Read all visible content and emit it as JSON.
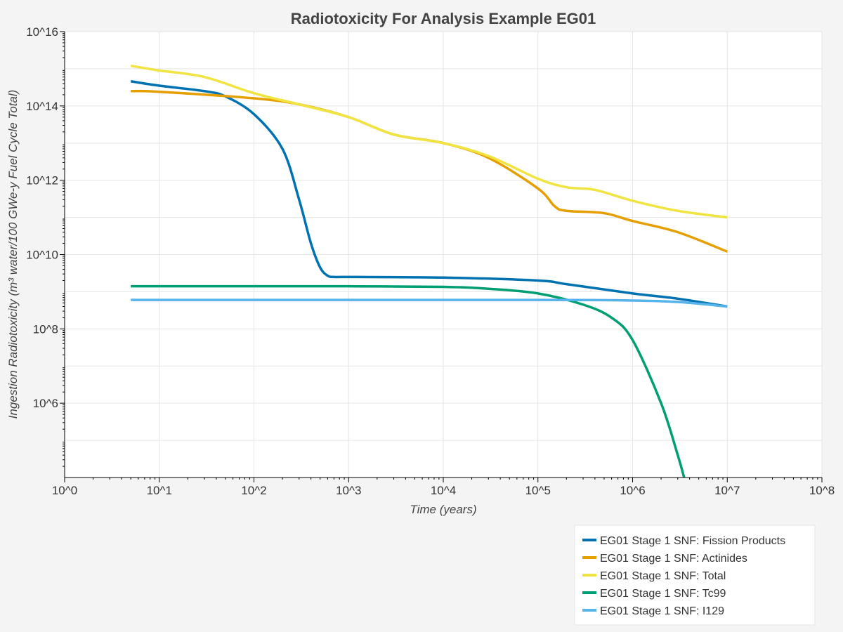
{
  "chart_data": {
    "type": "line",
    "title": "Radiotoxicity For Analysis Example EG01",
    "xlabel": "Time (years)",
    "ylabel": "Ingestion Radiotoxicity (m³ water/100 GWe-y Fuel Cycle Total)",
    "x_scale": "log",
    "y_scale": "log",
    "xlim": [
      1,
      100000000
    ],
    "ylim": [
      10000,
      10000000000000000
    ],
    "grid": true,
    "legend_position": "bottom-right",
    "x_ticks": [
      {
        "value": 1,
        "label": "10^0"
      },
      {
        "value": 10,
        "label": "10^1"
      },
      {
        "value": 100,
        "label": "10^2"
      },
      {
        "value": 1000,
        "label": "10^3"
      },
      {
        "value": 10000,
        "label": "10^4"
      },
      {
        "value": 100000,
        "label": "10^5"
      },
      {
        "value": 1000000,
        "label": "10^6"
      },
      {
        "value": 10000000,
        "label": "10^7"
      },
      {
        "value": 100000000,
        "label": "10^8"
      }
    ],
    "y_ticks": [
      {
        "value": 1000000,
        "label": "10^6"
      },
      {
        "value": 100000000,
        "label": "10^8"
      },
      {
        "value": 10000000000,
        "label": "10^10"
      },
      {
        "value": 1000000000000,
        "label": "10^12"
      },
      {
        "value": 100000000000000,
        "label": "10^14"
      },
      {
        "value": 10000000000000000,
        "label": "10^16"
      }
    ],
    "series": [
      {
        "name": "EG01 Stage 1 SNF: Fission Products",
        "color": "#0072b2",
        "points": [
          [
            5,
            460000000000000.0
          ],
          [
            10,
            350000000000000.0
          ],
          [
            30,
            250000000000000.0
          ],
          [
            50,
            180000000000000.0
          ],
          [
            100,
            60000000000000.0
          ],
          [
            200,
            7000000000000.0
          ],
          [
            300,
            300000000000.0
          ],
          [
            400,
            20000000000.0
          ],
          [
            500,
            4500000000.0
          ],
          [
            600,
            2700000000.0
          ],
          [
            700,
            2500000000.0
          ],
          [
            1000,
            2500000000.0
          ],
          [
            10000,
            2400000000.0
          ],
          [
            100000,
            2000000000.0
          ],
          [
            200000,
            1600000000.0
          ],
          [
            1000000,
            900000000.0
          ],
          [
            3000000,
            650000000.0
          ],
          [
            10000000,
            400000000.0
          ]
        ]
      },
      {
        "name": "EG01 Stage 1 SNF: Actinides",
        "color": "#e69f00",
        "points": [
          [
            5,
            250000000000000.0
          ],
          [
            10,
            240000000000000.0
          ],
          [
            100,
            160000000000000.0
          ],
          [
            300,
            110000000000000.0
          ],
          [
            1000,
            50000000000000.0
          ],
          [
            3000,
            17000000000000.0
          ],
          [
            10000,
            10000000000000.0
          ],
          [
            30000,
            4000000000000.0
          ],
          [
            100000,
            600000000000.0
          ],
          [
            150000,
            200000000000.0
          ],
          [
            200000,
            150000000000.0
          ],
          [
            500000,
            130000000000.0
          ],
          [
            1000000,
            80000000000.0
          ],
          [
            3000000,
            40000000000.0
          ],
          [
            10000000,
            12000000000.0
          ]
        ]
      },
      {
        "name": "EG01 Stage 1 SNF: Total",
        "color": "#f0e442",
        "points": [
          [
            5,
            1200000000000000.0
          ],
          [
            10,
            900000000000000.0
          ],
          [
            30,
            600000000000000.0
          ],
          [
            100,
            220000000000000.0
          ],
          [
            300,
            110000000000000.0
          ],
          [
            1000,
            50000000000000.0
          ],
          [
            3000,
            17000000000000.0
          ],
          [
            10000,
            10000000000000.0
          ],
          [
            30000,
            4500000000000.0
          ],
          [
            100000,
            1100000000000.0
          ],
          [
            200000,
            650000000000.0
          ],
          [
            400000,
            550000000000.0
          ],
          [
            1000000,
            280000000000.0
          ],
          [
            3000000,
            150000000000.0
          ],
          [
            10000000,
            100000000000.0
          ]
        ]
      },
      {
        "name": "EG01 Stage 1 SNF: Tc99",
        "color": "#009e73",
        "points": [
          [
            5,
            1400000000.0
          ],
          [
            100,
            1400000000.0
          ],
          [
            1000,
            1400000000.0
          ],
          [
            10000,
            1350000000.0
          ],
          [
            30000,
            1200000000.0
          ],
          [
            100000,
            900000000.0
          ],
          [
            300000,
            450000000.0
          ],
          [
            600000,
            200000000.0
          ],
          [
            1000000,
            50000000.0
          ],
          [
            2000000,
            1000000.0
          ],
          [
            3000000,
            40000.0
          ],
          [
            3500000,
            10000.0
          ]
        ]
      },
      {
        "name": "EG01 Stage 1 SNF: I129",
        "color": "#56b4e9",
        "points": [
          [
            5,
            600000000.0
          ],
          [
            100000,
            600000000.0
          ],
          [
            1000000,
            580000000.0
          ],
          [
            3000000,
            530000000.0
          ],
          [
            10000000,
            400000000.0
          ]
        ]
      }
    ]
  }
}
